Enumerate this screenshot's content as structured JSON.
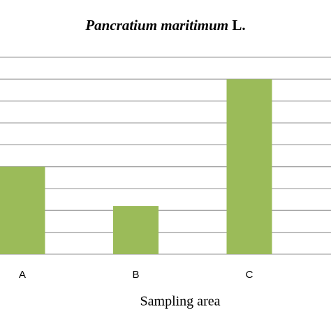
{
  "chart_data": {
    "type": "bar",
    "title": [
      "Pancratium maritimum",
      "L."
    ],
    "x_label": "Sampling area",
    "categories": [
      "A",
      "B",
      "C"
    ],
    "values": [
      4,
      2.2,
      8
    ],
    "color": "#9bbb59",
    "ylim": [
      0,
      9
    ],
    "yticks": [
      0,
      1,
      2,
      3,
      4,
      5,
      6,
      7,
      8,
      9
    ],
    "grid": true
  }
}
